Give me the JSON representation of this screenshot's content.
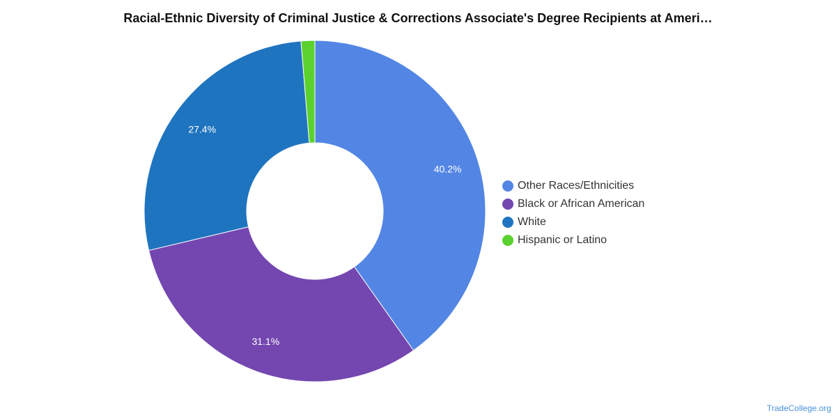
{
  "chart_data": {
    "type": "pie",
    "title": "Racial-Ethnic Diversity of Criminal Justice & Corrections Associate's Degree Recipients at Ameri…",
    "donut": true,
    "legend_position": "right",
    "slices": [
      {
        "name": "Other Races/Ethnicities",
        "value": 40.2,
        "label": "40.2%",
        "color": "#5386e4"
      },
      {
        "name": "Black or African American",
        "value": 31.1,
        "label": "31.1%",
        "color": "#7447b0"
      },
      {
        "name": "White",
        "value": 27.4,
        "label": "27.4%",
        "color": "#1f74bf"
      },
      {
        "name": "Hispanic or Latino",
        "value": 1.3,
        "label": "",
        "color": "#5bd12f"
      }
    ]
  },
  "source": "TradeCollege.org"
}
